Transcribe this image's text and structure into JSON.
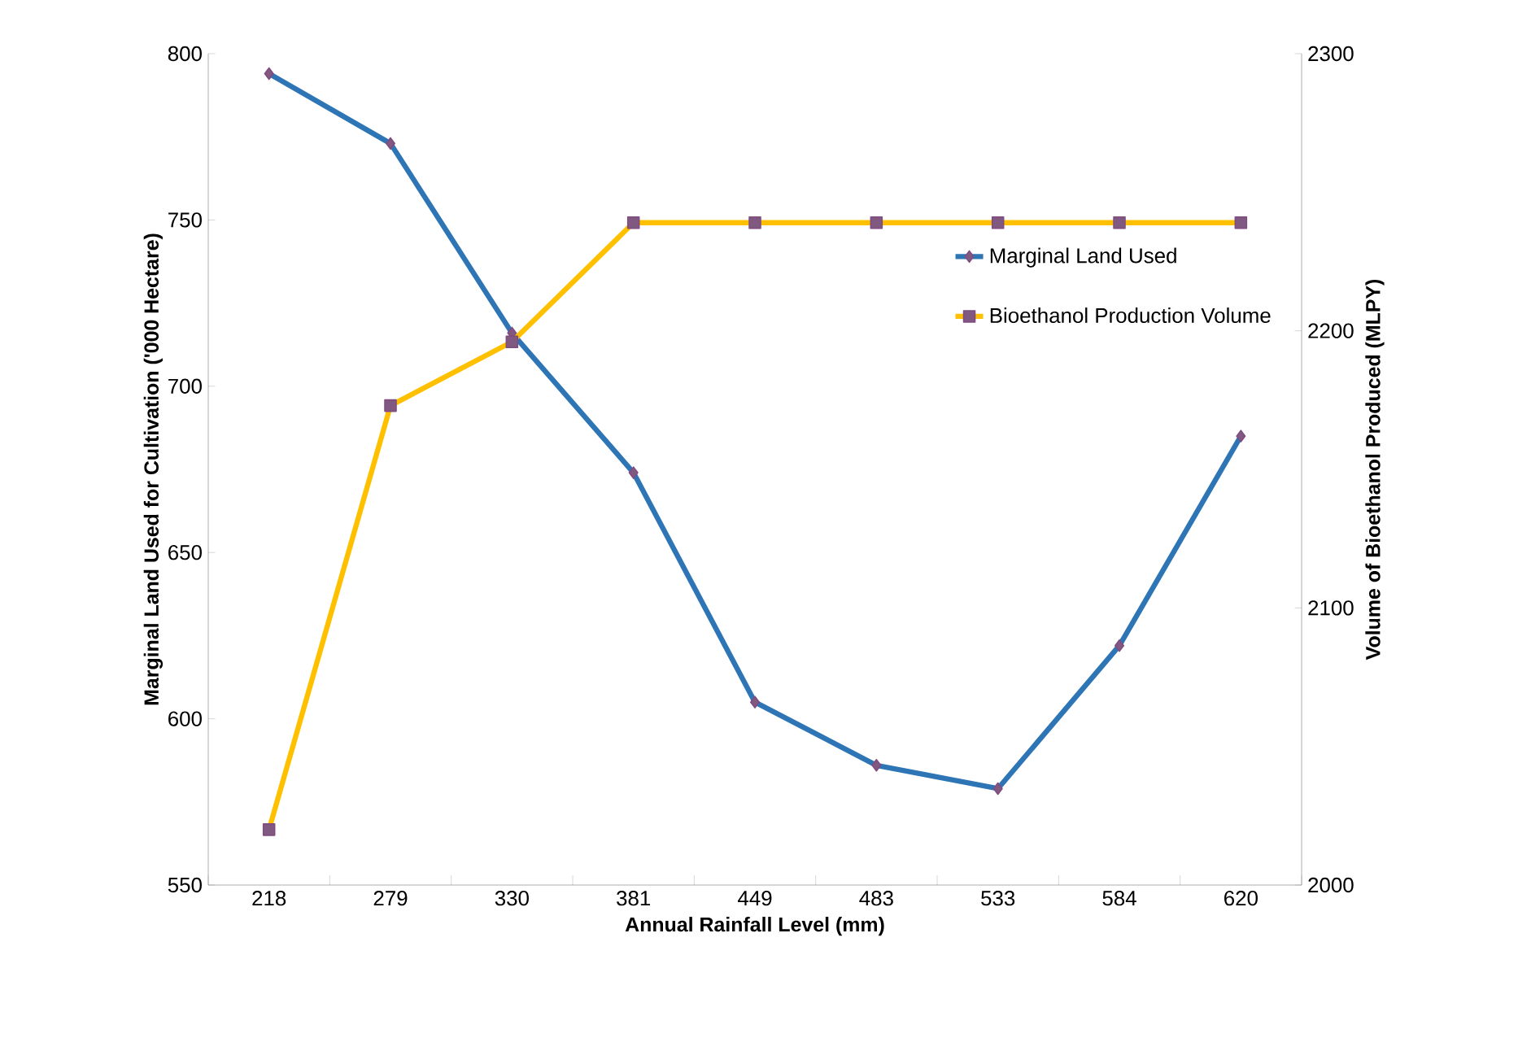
{
  "chart_data": {
    "type": "line",
    "xlabel": "Annual Rainfall  Level (mm)",
    "ylabel": "Marginal  Land Used for Cultivation  ('000 Hectare)",
    "y2label": "Volume of Bioethanol  Produced  (MLPY)",
    "categories": [
      "218",
      "279",
      "330",
      "381",
      "449",
      "483",
      "533",
      "584",
      "620"
    ],
    "series": [
      {
        "name": "Marginal Land Used",
        "color": "#2e75b6",
        "marker": "diamond",
        "values": [
          794,
          773,
          716,
          674,
          605,
          586,
          579,
          622,
          685
        ]
      },
      {
        "name": "Bioethanol Production Volume",
        "color": "#ffc000",
        "marker": "square",
        "axis": "y2",
        "values": [
          2020,
          2173,
          2196,
          2239,
          2239,
          2239,
          2239,
          2239,
          2239
        ]
      }
    ],
    "ylim": [
      550,
      800
    ],
    "yticks": [
      550,
      600,
      650,
      700,
      750,
      800
    ],
    "y2lim": [
      2000,
      2300
    ],
    "y2ticks": [
      2000,
      2100,
      2200,
      2300
    ],
    "legend": "right",
    "grid": false
  }
}
